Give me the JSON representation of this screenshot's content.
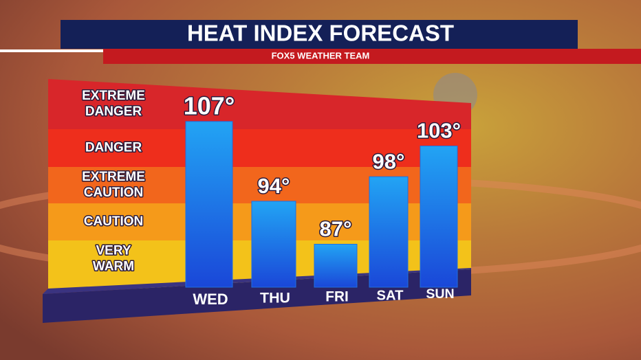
{
  "chart_data": {
    "type": "bar",
    "title": "HEAT INDEX FORECAST",
    "subtitle": "FOX5 WEATHER TEAM",
    "categories": [
      "WED",
      "THU",
      "FRI",
      "SAT",
      "SUN"
    ],
    "values": [
      107,
      94,
      87,
      98,
      103
    ],
    "value_labels": [
      "107°",
      "94°",
      "87°",
      "98°",
      "103°"
    ],
    "color": "#1f6fe0",
    "ylim": [
      80,
      110
    ],
    "zones": [
      [
        "EXTREME",
        "DANGER"
      ],
      [
        "DANGER"
      ],
      [
        "EXTREME",
        "CAUTION"
      ],
      [
        "CAUTION"
      ],
      [
        "VERY",
        "WARM"
      ]
    ],
    "zone_colors": [
      "#d8262a",
      "#ee2e1c",
      "#f2661c",
      "#f59a1a",
      "#f3c21a"
    ]
  }
}
